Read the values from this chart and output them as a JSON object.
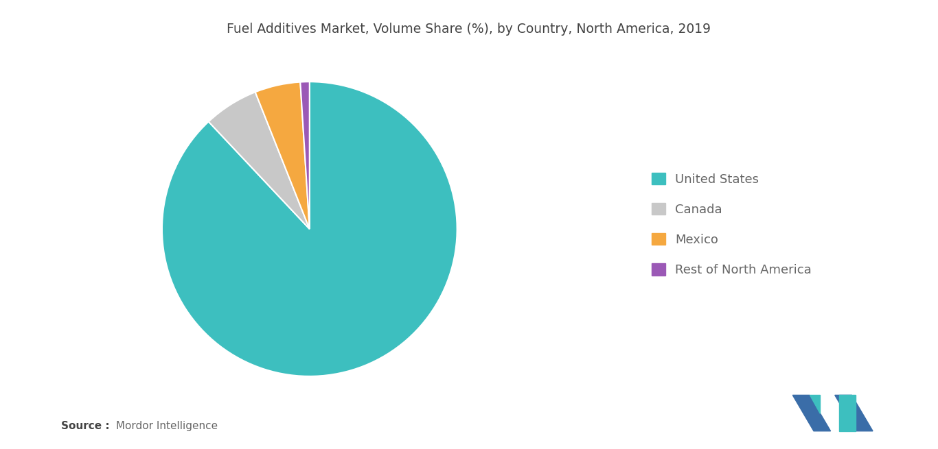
{
  "title": "Fuel Additives Market, Volume Share (%), by Country, North America, 2019",
  "labels": [
    "United States",
    "Canada",
    "Mexico",
    "Rest of North America"
  ],
  "values": [
    88.0,
    6.0,
    5.0,
    1.0
  ],
  "colors": [
    "#3dbfbf",
    "#c8c8c8",
    "#f5a840",
    "#9b59b6"
  ],
  "background_color": "#ffffff",
  "title_fontsize": 13.5,
  "legend_fontsize": 13,
  "source_bold": "Source :",
  "source_normal": " Mordor Intelligence",
  "startangle": 90,
  "wedge_edge_color": "#ffffff",
  "wedge_linewidth": 1.5,
  "logo_teal": "#3dbfbf",
  "logo_blue": "#3a6da8"
}
